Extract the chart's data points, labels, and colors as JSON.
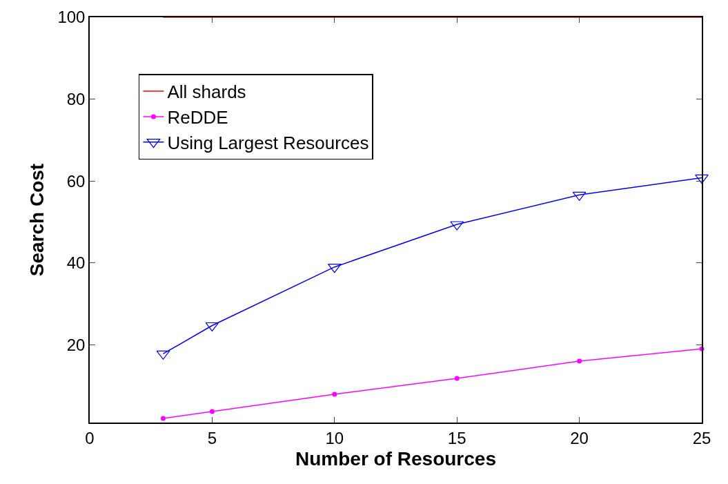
{
  "chart_data": {
    "type": "line",
    "xlabel": "Number of Resources",
    "ylabel": "Search Cost",
    "series": [
      {
        "name": "All shards",
        "color": "#ff0000",
        "marker": "none",
        "x": [
          3,
          25
        ],
        "values": [
          100,
          100
        ]
      },
      {
        "name": "ReDDE",
        "color": "#ff00ff",
        "marker": "circle",
        "x": [
          3,
          5,
          10,
          15,
          20,
          25
        ],
        "values": [
          2,
          3.7,
          7.9,
          11.8,
          16,
          19
        ]
      },
      {
        "name": "Using Largest Resources",
        "color": "#0000ff",
        "marker": "triangle",
        "x": [
          3,
          5,
          10,
          15,
          20,
          25
        ],
        "values": [
          17.8,
          24.7,
          39,
          49.4,
          56.6,
          60.8
        ]
      }
    ],
    "xlim": [
      0,
      25
    ],
    "xticks": [
      0,
      5,
      10,
      15,
      20,
      25
    ],
    "ylim": [
      1,
      100
    ],
    "yticks": [
      20,
      40,
      60,
      80,
      100
    ],
    "grid": false,
    "legend": "top left"
  }
}
